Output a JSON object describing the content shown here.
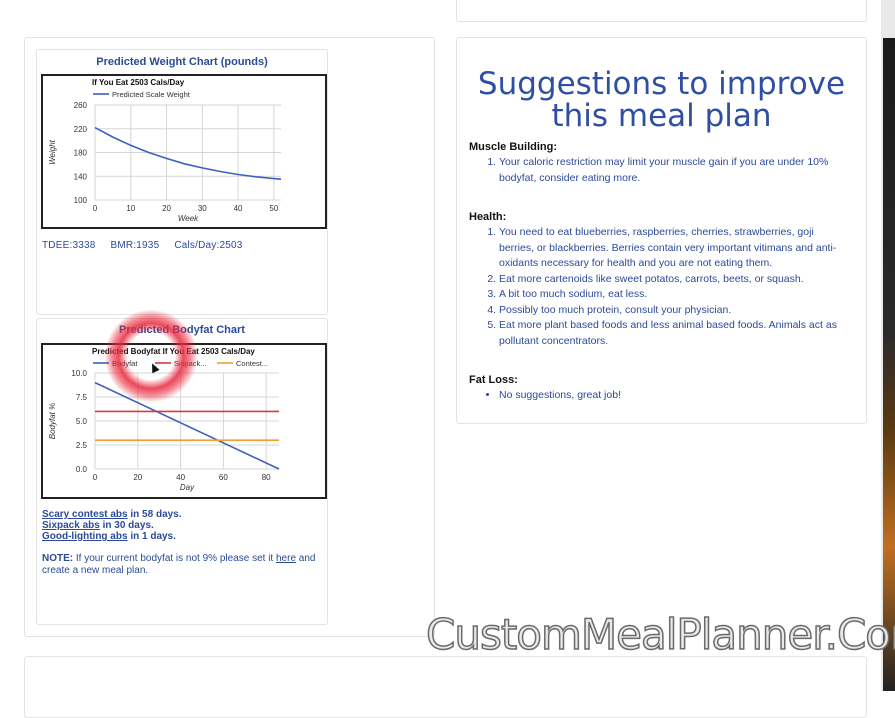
{
  "weight_chart": {
    "heading": "Predicted Weight Chart (pounds)",
    "chart_data": {
      "type": "line",
      "title": "If You Eat 2503 Cals/Day",
      "xlabel": "Week",
      "ylabel": "Weight",
      "xlim": [
        0,
        52
      ],
      "ylim": [
        100,
        260
      ],
      "xticks": [
        "0",
        "10",
        "20",
        "30",
        "40",
        "50"
      ],
      "yticks": [
        "100",
        "140",
        "180",
        "220",
        "260"
      ],
      "legend_position": "top-left",
      "grid": true,
      "series": [
        {
          "name": "Predicted Scale Weight",
          "color": "#3f5fbf",
          "points": [
            [
              0,
              222
            ],
            [
              5,
              206
            ],
            [
              10,
              192
            ],
            [
              15,
              180
            ],
            [
              20,
              170
            ],
            [
              25,
              161
            ],
            [
              30,
              154
            ],
            [
              35,
              148
            ],
            [
              40,
              143
            ],
            [
              45,
              139
            ],
            [
              50,
              136
            ],
            [
              52,
              135
            ]
          ]
        }
      ]
    },
    "stats": {
      "tdee": "TDEE:3338",
      "bmr": "BMR:1935",
      "cals": "Cals/Day:2503"
    }
  },
  "bodyfat_chart": {
    "heading": "Predicted Bodyfat Chart",
    "chart_data": {
      "type": "line",
      "title": "Predicted Bodyfat If You Eat 2503 Cals/Day",
      "xlabel": "Day",
      "ylabel": "Bodyfat %",
      "xlim": [
        0,
        86
      ],
      "ylim": [
        0,
        10
      ],
      "xticks": [
        "0",
        "20",
        "40",
        "60",
        "80"
      ],
      "yticks": [
        "0.0",
        "2.5",
        "5.0",
        "7.5",
        "10.0"
      ],
      "legend_position": "top",
      "grid": true,
      "series": [
        {
          "name": "Bodyfat",
          "color": "#3f5fbf",
          "points": [
            [
              0,
              9
            ],
            [
              86,
              0
            ]
          ]
        },
        {
          "name": "Sixpack...",
          "color": "#d83b3b",
          "points": [
            [
              0,
              6
            ],
            [
              86,
              6
            ]
          ]
        },
        {
          "name": "Contest...",
          "color": "#f0a030",
          "points": [
            [
              0,
              3
            ],
            [
              86,
              3
            ]
          ]
        }
      ]
    },
    "abs_lines": [
      {
        "link": "Scary contest abs",
        "rest": " in 58 days."
      },
      {
        "link": "Sixpack abs",
        "rest": " in 30 days."
      },
      {
        "link": "Good-lighting abs",
        "rest": " in 1 days."
      }
    ],
    "note": {
      "label": "NOTE:",
      "text1": " If your current bodyfat is not 9% please set it ",
      "link": "here",
      "text2": " and create a new meal plan."
    }
  },
  "suggestions": {
    "title_line1": "Suggestions to improve",
    "title_line2": "this meal plan",
    "sections": [
      {
        "heading": "Muscle Building:",
        "items": [
          "Your caloric restriction may limit your muscle gain if you are under 10% bodyfat, consider eating more."
        ]
      },
      {
        "heading": "Health:",
        "items": [
          "You need to eat blueberries, raspberries, cherries, strawberries, goji berries, or blackberries. Berries contain very important vitimans and anti-oxidants necessary for health and you are not eating them.",
          "Eat more cartenoids like sweet potatos, carrots, beets, or squash.",
          "A bit too much sodium, eat less.",
          "Possibly too much protein, consult your physician.",
          "Eat more plant based foods and less animal based foods. Animals act as pollutant concentrators."
        ]
      },
      {
        "heading": "Fat Loss:",
        "items": [
          "No suggestions, great job!"
        ]
      }
    ]
  },
  "watermark": "CustomMealPlanner.Com",
  "colors": {
    "accent": "#2c4a9a",
    "line_blue": "#3f5fbf",
    "line_red": "#d83b3b",
    "line_orange": "#f0a030"
  }
}
